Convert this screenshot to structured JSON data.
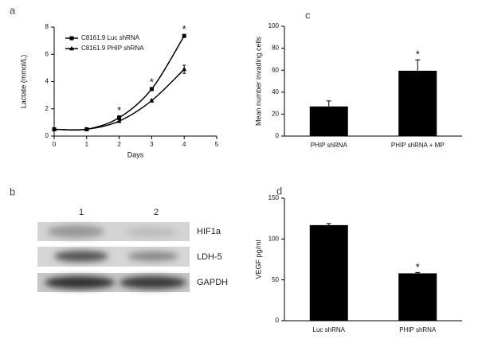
{
  "chart_data": [
    {
      "type": "line",
      "panel": "a",
      "x": [
        0,
        1,
        2,
        3,
        4
      ],
      "xlabel": "Days",
      "ylabel": "Lactate (mmol/L)",
      "xlim": [
        0,
        5
      ],
      "xticks": [
        0,
        1,
        2,
        3,
        4,
        5
      ],
      "ylim": [
        0,
        8
      ],
      "yticks": [
        0,
        2,
        4,
        6,
        8
      ],
      "legend": "upper left",
      "series": [
        {
          "name": "C8161.9 Luc shRNA",
          "color": "#000000",
          "marker": "square",
          "values": [
            0.5,
            0.5,
            1.35,
            3.45,
            7.35
          ],
          "errors": [
            0.05,
            0.05,
            0.15,
            0.1,
            0.1
          ]
        },
        {
          "name": "C8161.9 PHIP shRNA",
          "color": "#000000",
          "marker": "triangle",
          "values": [
            0.5,
            0.5,
            1.1,
            2.6,
            4.9
          ],
          "errors": [
            0.05,
            0.05,
            0.1,
            0.1,
            0.3
          ]
        }
      ],
      "significance": [
        null,
        null,
        "*",
        "*",
        "*"
      ]
    },
    {
      "type": "bar",
      "panel": "c",
      "ylabel": "Mean number invading cells",
      "categories": [
        "PHIP shRNA",
        "PHIP shRNA + MP"
      ],
      "values": [
        27,
        59.5
      ],
      "errors": [
        5,
        10
      ],
      "color": "#000000",
      "ylim": [
        0,
        100
      ],
      "yticks": [
        0,
        20,
        40,
        60,
        80,
        100
      ],
      "significance": [
        null,
        "*"
      ]
    },
    {
      "type": "bar",
      "panel": "d",
      "ylabel": "VEGF pg/ml",
      "categories": [
        "Luc shRNA",
        "PHIP shRNA"
      ],
      "values": [
        117,
        58
      ],
      "errors": [
        2,
        1
      ],
      "color": "#000000",
      "ylim": [
        0,
        150
      ],
      "yticks": [
        0,
        50,
        100,
        150
      ],
      "significance": [
        null,
        "*"
      ]
    }
  ],
  "blot": {
    "panel": "b",
    "lanes": [
      "1",
      "2"
    ],
    "bands": [
      "HIF1a",
      "LDH-5",
      "GAPDH"
    ]
  }
}
